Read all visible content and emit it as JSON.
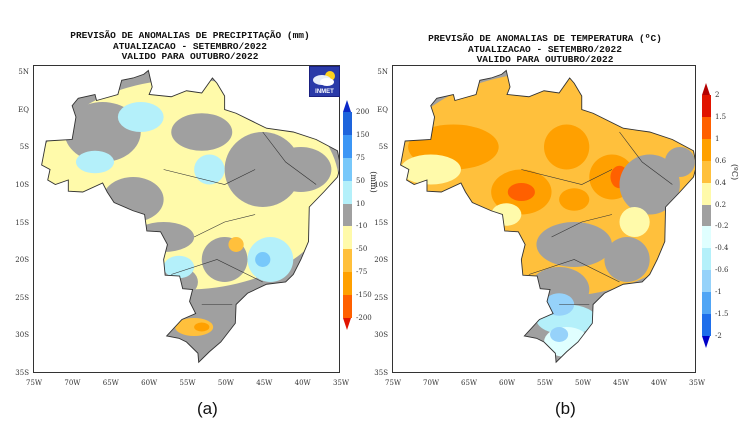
{
  "panels": [
    {
      "id": "a",
      "title": [
        "PREVISÃO DE ANOMALIAS DE PRECIPITAÇÃO (mm)",
        "ATUALIZACAO - SETEMBRO/2022",
        "VALIDO PARA OUTUBRO/2022"
      ],
      "unit": "(mm)",
      "caption": "(a)",
      "logo_text": "INMET",
      "colorbar": {
        "labels": [
          "200",
          "150",
          "75",
          "50",
          "10",
          "-10",
          "-50",
          "-75",
          "-150",
          "-200"
        ],
        "colors": [
          "#0a28c8",
          "#1e64dc",
          "#3c96f5",
          "#78c8fa",
          "#b4f0fa",
          "#a0a0a0",
          "#fffaaa",
          "#ffc03c",
          "#ffa000",
          "#ff6000",
          "#e11400"
        ]
      }
    },
    {
      "id": "b",
      "title": [
        "PREVISÃO DE ANOMALIAS DE TEMPERATURA (ºC)",
        "ATUALIZACAO - SETEMBRO/2022",
        "VALIDO PARA OUTUBRO/2022"
      ],
      "unit": "(ºC)",
      "caption": "(b)",
      "colorbar": {
        "labels": [
          "2",
          "1.5",
          "1",
          "0.6",
          "0.4",
          "0.2",
          "-0.2",
          "-0.4",
          "-0.6",
          "-1",
          "-1.5",
          "-2"
        ],
        "colors": [
          "#b40000",
          "#e11400",
          "#ff6000",
          "#ffa000",
          "#ffc03c",
          "#fffaaa",
          "#a0a0a0",
          "#e0ffff",
          "#b4f0fa",
          "#96d2fa",
          "#50a5f5",
          "#1e6eeb",
          "#0000c8"
        ]
      }
    }
  ],
  "axes": {
    "lat_labels": [
      "5N",
      "EQ",
      "5S",
      "10S",
      "15S",
      "20S",
      "25S",
      "30S",
      "35S"
    ],
    "lon_labels": [
      "75W",
      "70W",
      "65W",
      "60W",
      "55W",
      "50W",
      "45W",
      "40W",
      "35W"
    ]
  }
}
